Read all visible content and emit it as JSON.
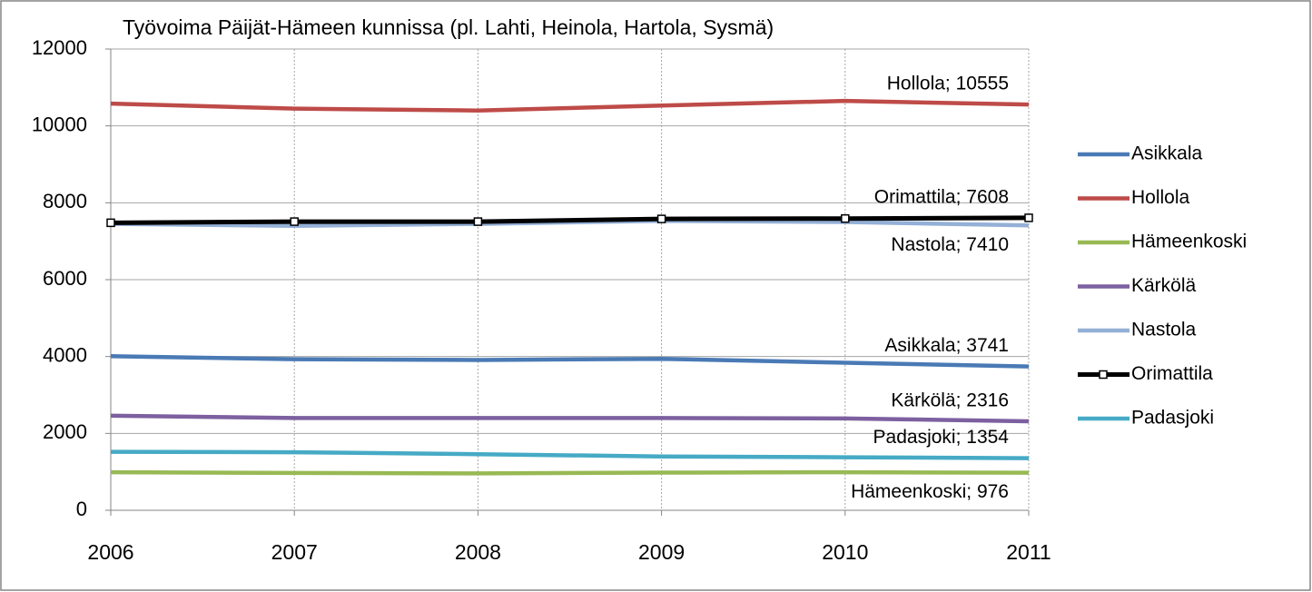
{
  "chart_data": {
    "type": "line",
    "title": "Työvoima Päijät-Hämeen kunnissa (pl. Lahti, Heinola, Hartola, Sysmä)",
    "x": [
      2006,
      2007,
      2008,
      2009,
      2010,
      2011
    ],
    "xlim": [
      2006,
      2011
    ],
    "xticks": [
      2006,
      2007,
      2008,
      2009,
      2010,
      2011
    ],
    "ylim": [
      0,
      12000
    ],
    "yticks": [
      0,
      2000,
      4000,
      6000,
      8000,
      10000,
      12000
    ],
    "grid": true,
    "legend": "right",
    "series": [
      {
        "name": "Asikkala",
        "color": "#4a7ab5",
        "values": [
          4010,
          3930,
          3910,
          3940,
          3840,
          3741
        ],
        "value_labels": [
          null,
          null,
          null,
          null,
          null,
          "Asikkala; 3741"
        ]
      },
      {
        "name": "Hollola",
        "color": "#be4b48",
        "values": [
          10580,
          10450,
          10400,
          10530,
          10650,
          10555
        ],
        "value_labels": [
          null,
          null,
          null,
          null,
          null,
          "Hollola; 10555"
        ]
      },
      {
        "name": "Hämeenkoski",
        "color": "#98b954",
        "values": [
          990,
          970,
          960,
          980,
          990,
          976
        ],
        "value_labels": [
          null,
          null,
          null,
          null,
          null,
          "Hämeenkoski; 976"
        ]
      },
      {
        "name": "Kärkölä",
        "color": "#7d60a0",
        "values": [
          2460,
          2400,
          2400,
          2400,
          2390,
          2316
        ],
        "value_labels": [
          null,
          null,
          null,
          null,
          null,
          "Kärkölä; 2316"
        ]
      },
      {
        "name": "Nastola",
        "color": "#94b0d6",
        "values": [
          7450,
          7400,
          7450,
          7530,
          7500,
          7410
        ],
        "value_labels": [
          null,
          null,
          null,
          null,
          null,
          "Nastola; 7410"
        ]
      },
      {
        "name": "Orimattila",
        "color": "#000000",
        "values": [
          7480,
          7510,
          7510,
          7580,
          7590,
          7608
        ],
        "value_labels": [
          null,
          null,
          null,
          null,
          null,
          "Orimattila; 7608"
        ],
        "marker": "square"
      },
      {
        "name": "Padasjoki",
        "color": "#46aac5",
        "values": [
          1520,
          1510,
          1460,
          1400,
          1380,
          1354
        ],
        "value_labels": [
          null,
          null,
          null,
          null,
          null,
          "Padasjoki; 1354"
        ]
      }
    ]
  }
}
